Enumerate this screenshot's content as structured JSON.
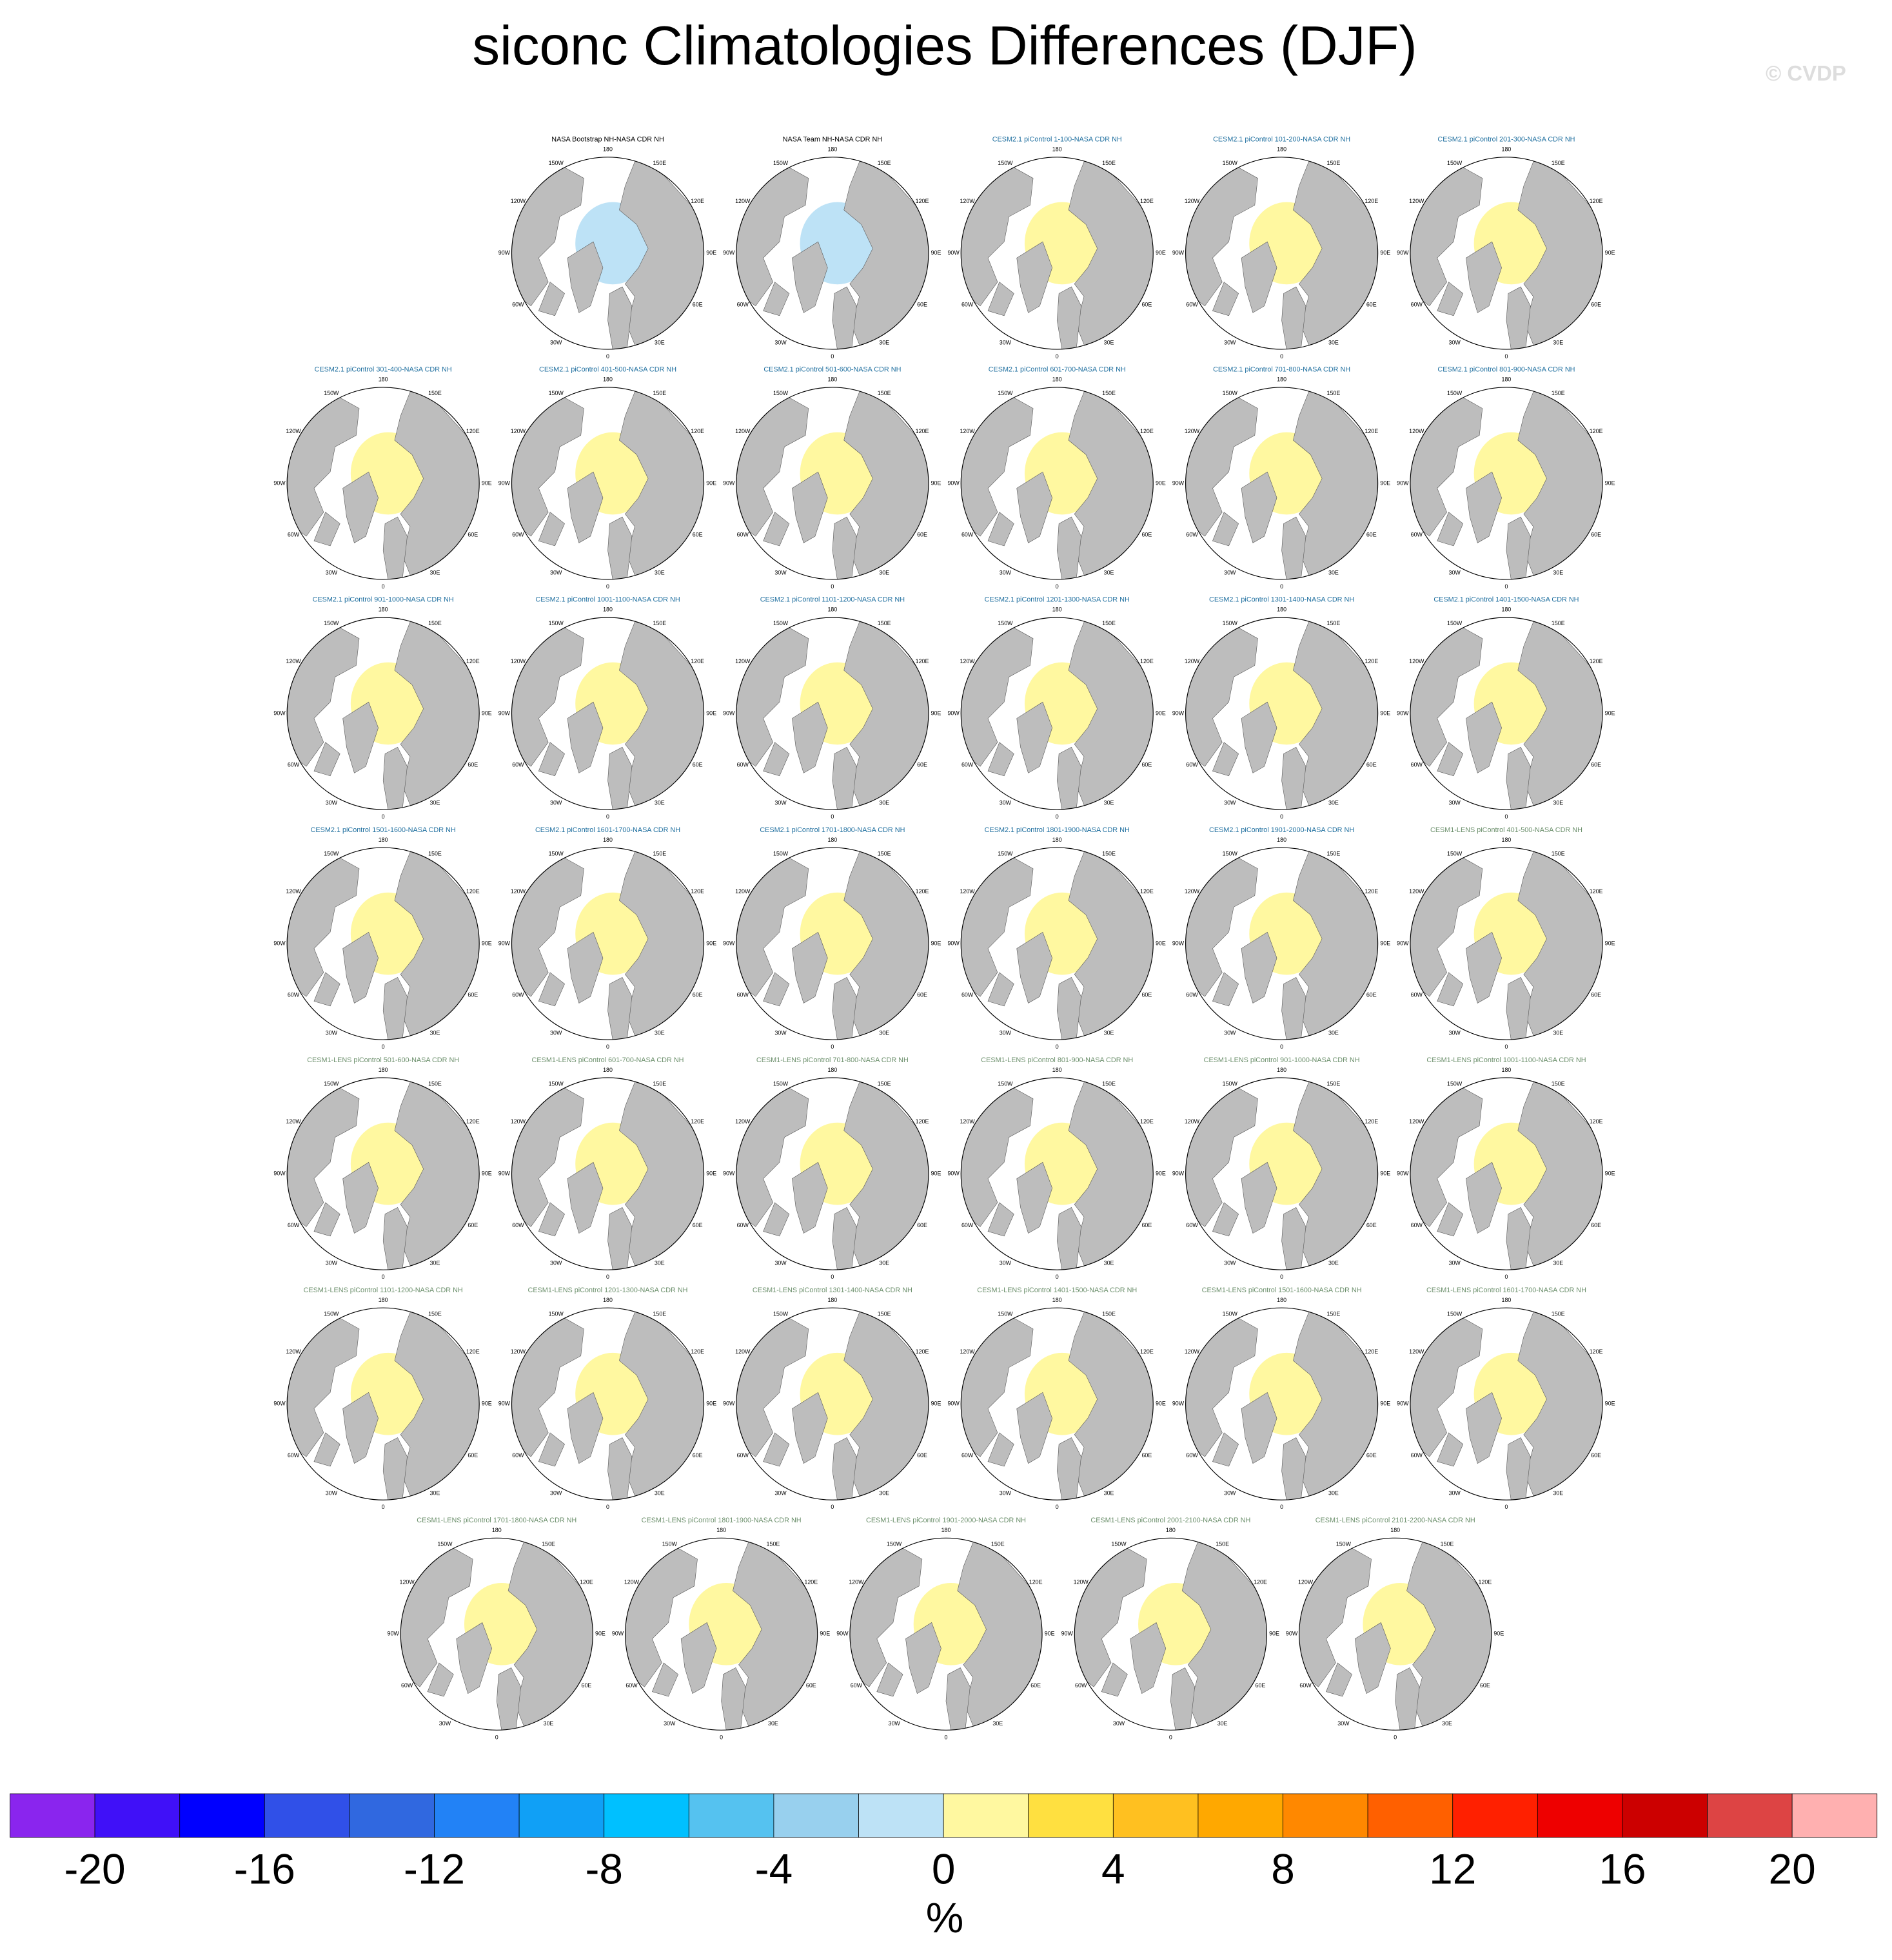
{
  "title": "siconc Climatologies Differences (DJF)",
  "watermark": "© CVDP",
  "panels": [
    {
      "title": "NASA Bootstrap NH-NASA CDR NH",
      "color": "#000000"
    },
    {
      "title": "NASA Team NH-NASA CDR NH",
      "color": "#000000"
    },
    {
      "title": "CESM2.1 piControl 1-100-NASA CDR NH",
      "color": "#1f6f9f"
    },
    {
      "title": "CESM2.1 piControl 101-200-NASA CDR NH",
      "color": "#1f6f9f"
    },
    {
      "title": "CESM2.1 piControl 201-300-NASA CDR NH",
      "color": "#1f6f9f"
    },
    {
      "title": "CESM2.1 piControl 301-400-NASA CDR NH",
      "color": "#1f6f9f"
    },
    {
      "title": "CESM2.1 piControl 401-500-NASA CDR NH",
      "color": "#1f6f9f"
    },
    {
      "title": "CESM2.1 piControl 501-600-NASA CDR NH",
      "color": "#1f6f9f"
    },
    {
      "title": "CESM2.1 piControl 601-700-NASA CDR NH",
      "color": "#1f6f9f"
    },
    {
      "title": "CESM2.1 piControl 701-800-NASA CDR NH",
      "color": "#1f6f9f"
    },
    {
      "title": "CESM2.1 piControl 801-900-NASA CDR NH",
      "color": "#1f6f9f"
    },
    {
      "title": "CESM2.1 piControl 901-1000-NASA CDR NH",
      "color": "#1f6f9f"
    },
    {
      "title": "CESM2.1 piControl 1001-1100-NASA CDR NH",
      "color": "#1f6f9f"
    },
    {
      "title": "CESM2.1 piControl 1101-1200-NASA CDR NH",
      "color": "#1f6f9f"
    },
    {
      "title": "CESM2.1 piControl 1201-1300-NASA CDR NH",
      "color": "#1f6f9f"
    },
    {
      "title": "CESM2.1 piControl 1301-1400-NASA CDR NH",
      "color": "#1f6f9f"
    },
    {
      "title": "CESM2.1 piControl 1401-1500-NASA CDR NH",
      "color": "#1f6f9f"
    },
    {
      "title": "CESM2.1 piControl 1501-1600-NASA CDR NH",
      "color": "#1f6f9f"
    },
    {
      "title": "CESM2.1 piControl 1601-1700-NASA CDR NH",
      "color": "#1f6f9f"
    },
    {
      "title": "CESM2.1 piControl 1701-1800-NASA CDR NH",
      "color": "#1f6f9f"
    },
    {
      "title": "CESM2.1 piControl 1801-1900-NASA CDR NH",
      "color": "#1f6f9f"
    },
    {
      "title": "CESM2.1 piControl 1901-2000-NASA CDR NH",
      "color": "#1f6f9f"
    },
    {
      "title": "CESM1-LENS piControl 401-500-NASA CDR NH",
      "color": "#6b8f6b"
    },
    {
      "title": "CESM1-LENS piControl 501-600-NASA CDR NH",
      "color": "#6b8f6b"
    },
    {
      "title": "CESM1-LENS piControl 601-700-NASA CDR NH",
      "color": "#6b8f6b"
    },
    {
      "title": "CESM1-LENS piControl 701-800-NASA CDR NH",
      "color": "#6b8f6b"
    },
    {
      "title": "CESM1-LENS piControl 801-900-NASA CDR NH",
      "color": "#6b8f6b"
    },
    {
      "title": "CESM1-LENS piControl 901-1000-NASA CDR NH",
      "color": "#6b8f6b"
    },
    {
      "title": "CESM1-LENS piControl 1001-1100-NASA CDR NH",
      "color": "#6b8f6b"
    },
    {
      "title": "CESM1-LENS piControl 1101-1200-NASA CDR NH",
      "color": "#6b8f6b"
    },
    {
      "title": "CESM1-LENS piControl 1201-1300-NASA CDR NH",
      "color": "#6b8f6b"
    },
    {
      "title": "CESM1-LENS piControl 1301-1400-NASA CDR NH",
      "color": "#6b8f6b"
    },
    {
      "title": "CESM1-LENS piControl 1401-1500-NASA CDR NH",
      "color": "#6b8f6b"
    },
    {
      "title": "CESM1-LENS piControl 1501-1600-NASA CDR NH",
      "color": "#6b8f6b"
    },
    {
      "title": "CESM1-LENS piControl 1601-1700-NASA CDR NH",
      "color": "#6b8f6b"
    },
    {
      "title": "CESM1-LENS piControl 1701-1800-NASA CDR NH",
      "color": "#6b8f6b"
    },
    {
      "title": "CESM1-LENS piControl 1801-1900-NASA CDR NH",
      "color": "#6b8f6b"
    },
    {
      "title": "CESM1-LENS piControl 1901-2000-NASA CDR NH",
      "color": "#6b8f6b"
    },
    {
      "title": "CESM1-LENS piControl 2001-2100-NASA CDR NH",
      "color": "#6b8f6b"
    },
    {
      "title": "CESM1-LENS piControl 2101-2200-NASA CDR NH",
      "color": "#6b8f6b"
    }
  ],
  "lon_labels": [
    "0",
    "30E",
    "60E",
    "90E",
    "120E",
    "150E",
    "180",
    "150W",
    "120W",
    "90W",
    "60W",
    "30W"
  ],
  "colorbar": {
    "levels": [
      -20,
      -18,
      -16,
      -14,
      -12,
      -10,
      -8,
      -6,
      -4,
      -2,
      0,
      2,
      4,
      6,
      8,
      10,
      12,
      14,
      16,
      18,
      20
    ],
    "colors": [
      "#8a25ee",
      "#4010f8",
      "#0000ff",
      "#3050e8",
      "#3068e0",
      "#2282f6",
      "#10a0f6",
      "#00c0ff",
      "#55c2f0",
      "#98d0ee",
      "#bde2f6",
      "#fff8a0",
      "#ffe040",
      "#ffc020",
      "#ffa800",
      "#ff8800",
      "#ff6000",
      "#ff2000",
      "#ee0000",
      "#cc0000",
      "#dd4444",
      "#ffb0b0"
    ],
    "ticks": [
      -20,
      -16,
      -12,
      -8,
      -4,
      0,
      4,
      8,
      12,
      16,
      20
    ],
    "unit": "%"
  }
}
